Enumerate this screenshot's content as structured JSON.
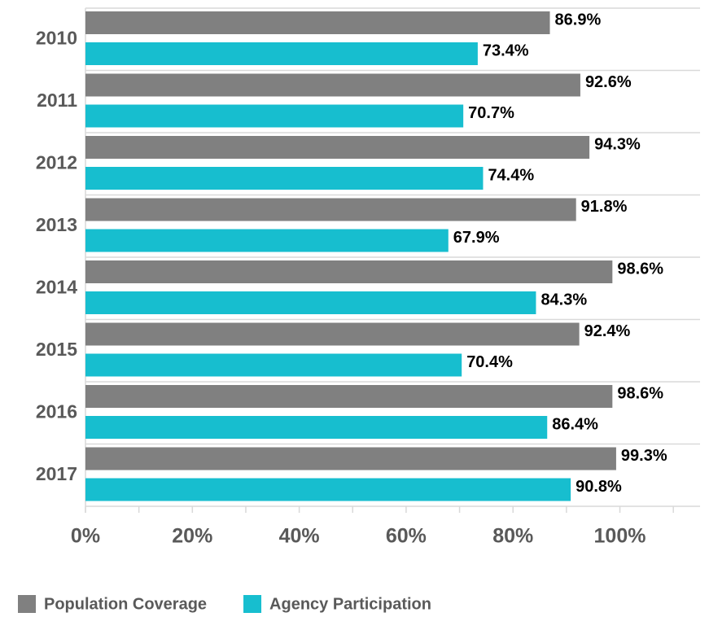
{
  "chart_data": {
    "type": "hbar",
    "categories": [
      "2010",
      "2011",
      "2012",
      "2013",
      "2014",
      "2015",
      "2016",
      "2017"
    ],
    "series": [
      {
        "name": "Population Coverage",
        "color": "#808080",
        "values": [
          86.9,
          92.6,
          94.3,
          91.8,
          98.6,
          92.4,
          98.6,
          99.3
        ],
        "value_labels": [
          "86.9%",
          "92.6%",
          "94.3%",
          "91.8%",
          "98.6%",
          "92.4%",
          "98.6%",
          "99.3%"
        ]
      },
      {
        "name": "Agency Participation",
        "color": "#17becf",
        "values": [
          73.4,
          70.7,
          74.4,
          67.9,
          84.3,
          70.4,
          86.4,
          90.8
        ],
        "value_labels": [
          "73.4%",
          "70.7%",
          "74.4%",
          "67.9%",
          "84.3%",
          "70.4%",
          "86.4%",
          "90.8%"
        ]
      }
    ],
    "xlim": [
      0,
      115
    ],
    "xticks": [
      {
        "value": 0,
        "label": "0%"
      },
      {
        "value": 20,
        "label": "20%"
      },
      {
        "value": 40,
        "label": "40%"
      },
      {
        "value": 60,
        "label": "60%"
      },
      {
        "value": 80,
        "label": "80%"
      },
      {
        "value": 100,
        "label": "100%"
      }
    ],
    "xminorticks": [
      10,
      30,
      50,
      70,
      90,
      110
    ],
    "grid": true,
    "legend": "bottom-left"
  }
}
